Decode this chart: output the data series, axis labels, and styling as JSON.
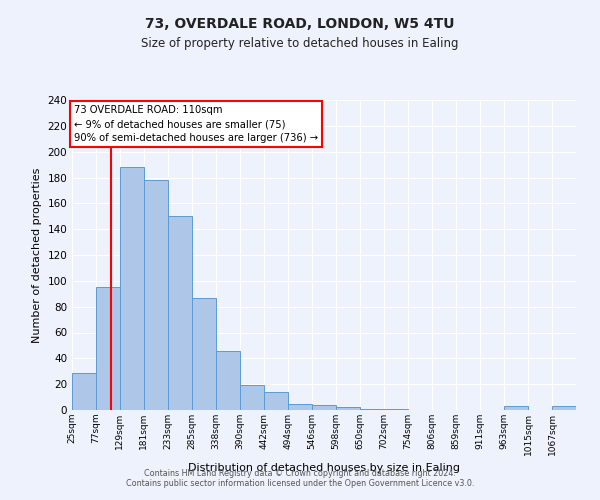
{
  "title1": "73, OVERDALE ROAD, LONDON, W5 4TU",
  "title2": "Size of property relative to detached houses in Ealing",
  "xlabel": "Distribution of detached houses by size in Ealing",
  "ylabel": "Number of detached properties",
  "bin_labels": [
    "25sqm",
    "77sqm",
    "129sqm",
    "181sqm",
    "233sqm",
    "285sqm",
    "338sqm",
    "390sqm",
    "442sqm",
    "494sqm",
    "546sqm",
    "598sqm",
    "650sqm",
    "702sqm",
    "754sqm",
    "806sqm",
    "859sqm",
    "911sqm",
    "963sqm",
    "1015sqm",
    "1067sqm"
  ],
  "bar_heights": [
    29,
    95,
    188,
    178,
    150,
    87,
    46,
    19,
    14,
    5,
    4,
    2,
    1,
    1,
    0,
    0,
    0,
    0,
    3,
    0,
    3
  ],
  "bar_color": "#aec6e8",
  "bar_edge_color": "#5b9bd5",
  "red_line_x": 110,
  "bin_width": 52,
  "ylim": [
    0,
    240
  ],
  "yticks": [
    0,
    20,
    40,
    60,
    80,
    100,
    120,
    140,
    160,
    180,
    200,
    220,
    240
  ],
  "annotation_title": "73 OVERDALE ROAD: 110sqm",
  "annotation_line1": "← 9% of detached houses are smaller (75)",
  "annotation_line2": "90% of semi-detached houses are larger (736) →",
  "background_color": "#eef2fc",
  "fig_background_color": "#eef2fc",
  "grid_color": "#ffffff",
  "footer1": "Contains HM Land Registry data © Crown copyright and database right 2024.",
  "footer2": "Contains public sector information licensed under the Open Government Licence v3.0."
}
